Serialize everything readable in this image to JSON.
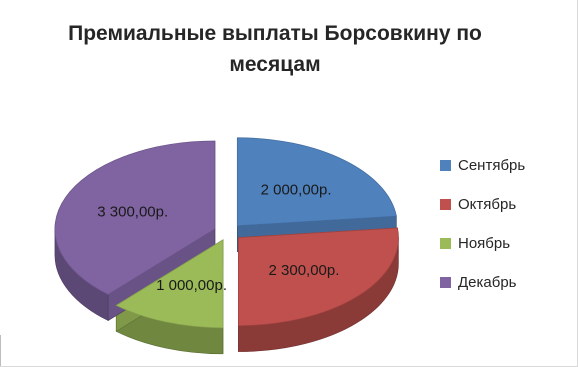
{
  "chart_data": {
    "type": "pie",
    "title": "Премиальные выплаты Борсовкину по месяцам",
    "categories": [
      "Сентябрь",
      "Октябрь",
      "Ноябрь",
      "Декабрь"
    ],
    "values": [
      2000,
      2300,
      1000,
      3300
    ],
    "data_labels": [
      "2 000,00р.",
      "2 300,00р.",
      "1 000,00р.",
      "3 300,00р."
    ],
    "colors": [
      "#4f81bd",
      "#c0504d",
      "#9bbb59",
      "#8064a2"
    ],
    "exploded": true,
    "three_d": true,
    "legend_position": "right"
  }
}
